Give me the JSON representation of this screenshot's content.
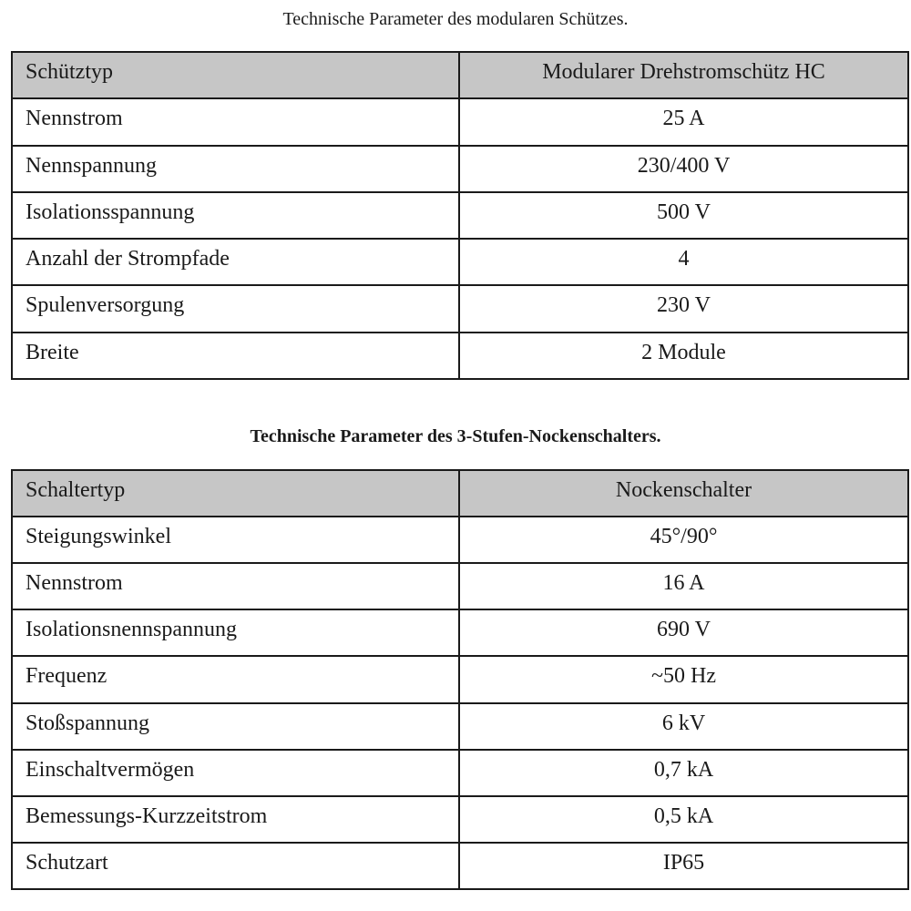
{
  "table1": {
    "caption": "Technische Parameter des modularen Schützes.",
    "header": [
      "Schütztyp",
      "Modularer Drehstromschütz HC"
    ],
    "rows": [
      [
        "Nennstrom",
        "25 A"
      ],
      [
        "Nennspannung",
        "230/400 V"
      ],
      [
        "Isolationsspannung",
        "500 V"
      ],
      [
        "Anzahl der Strompfade",
        "4"
      ],
      [
        "Spulenversorgung",
        "230 V"
      ],
      [
        "Breite",
        "2 Module"
      ]
    ]
  },
  "table2": {
    "caption": "Technische Parameter des 3-Stufen-Nockenschalters.",
    "header": [
      "Schaltertyp",
      "Nockenschalter"
    ],
    "rows": [
      [
        "Steigungswinkel",
        "45°/90°"
      ],
      [
        "Nennstrom",
        "16 A"
      ],
      [
        "Isolationsnennspannung",
        "690 V"
      ],
      [
        "Frequenz",
        "~50 Hz"
      ],
      [
        "Stoßspannung",
        "6 kV"
      ],
      [
        "Einschaltvermögen",
        "0,7 kA"
      ],
      [
        "Bemessungs-Kurzzeitstrom",
        "0,5 kA"
      ],
      [
        "Schutzart",
        "IP65"
      ]
    ]
  }
}
